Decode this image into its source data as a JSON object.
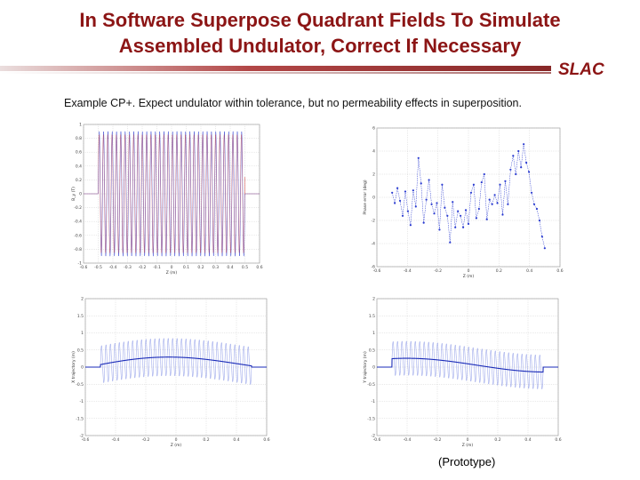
{
  "slide": {
    "title_line1": "In Software Superpose Quadrant Fields To Simulate",
    "title_line2": "Assembled Undulator, Correct If Necessary",
    "logo": "SLAC",
    "subtitle": "Example CP+.  Expect undulator within tolerance, but no permeability effects in superposition.",
    "caption": "(Prototype)"
  },
  "colors": {
    "title": "#8c1515",
    "trace_blue": "#2a3bd0",
    "trace_red": "#d04040",
    "grid": "#c8c8c8"
  },
  "chart_data": [
    {
      "type": "line",
      "title": "",
      "xlabel": "Z (m)",
      "ylabel": "B_y (T)",
      "ylim": [
        -1,
        1
      ],
      "xlim": [
        -0.6,
        0.6
      ],
      "x_ticks": [
        "-0.6",
        "-0.5",
        "-0.4",
        "-0.3",
        "-0.2",
        "-0.1",
        "0",
        "0.1",
        "0.2",
        "0.3",
        "0.4",
        "0.5",
        "0.6"
      ],
      "y_ticks": [
        "1",
        "0.8",
        "0.6",
        "0.4",
        "0.2",
        "0",
        "-0.2",
        "-0.4",
        "-0.6",
        "-0.8",
        "-1"
      ],
      "series": [
        {
          "color": "#2a3bd0",
          "periods": 34,
          "amplitude": 0.9,
          "x_start": -0.5,
          "x_end": 0.5
        },
        {
          "color": "#d04040",
          "periods": 34,
          "amplitude": 0.88,
          "x_start": -0.5,
          "x_end": 0.5
        }
      ]
    },
    {
      "type": "scatter",
      "title": "",
      "xlabel": "Z (m)",
      "ylabel": "Phase error (deg)",
      "ylim": [
        -6,
        6
      ],
      "xlim": [
        -0.6,
        0.6
      ],
      "x_ticks": [
        "-0.6",
        "-0.4",
        "-0.2",
        "0",
        "0.2",
        "0.4",
        "0.6"
      ],
      "y_ticks": [
        "6",
        "4",
        "2",
        "0",
        "-2",
        "-4",
        "-6"
      ],
      "values": [
        0.4,
        -0.5,
        0.8,
        -0.3,
        -1.6,
        0.5,
        -1.2,
        -2.4,
        0.6,
        -0.8,
        3.4,
        1.2,
        -2.2,
        -0.2,
        1.5,
        -0.6,
        -1.4,
        -0.5,
        -2.8,
        1.1,
        -0.9,
        -1.6,
        -3.9,
        -0.4,
        -2.6,
        -1.2,
        -1.6,
        -2.6,
        -1.1,
        -2.3,
        0.4,
        1.1,
        -1.8,
        -1.0,
        1.3,
        2.0,
        -1.9,
        -0.2,
        -0.6,
        0.2,
        -0.5,
        1.1,
        -1.5,
        1.4,
        -0.6,
        2.4,
        3.6,
        2.0,
        4.0,
        2.6,
        4.6,
        3.0,
        2.2,
        0.4,
        -0.6,
        -1.0,
        -2.0,
        -3.4,
        -4.4
      ]
    },
    {
      "type": "line",
      "title": "",
      "xlabel": "Z (m)",
      "ylabel": "X trajectory (m)",
      "ylim": [
        -2,
        2
      ],
      "xlim": [
        -0.6,
        0.6
      ],
      "x_ticks": [
        "-0.6",
        "-0.4",
        "-0.2",
        "0",
        "0.2",
        "0.4",
        "0.6"
      ],
      "y_ticks": [
        "2",
        "1.5",
        "1",
        "0.5",
        "0",
        "-0.5",
        "-1",
        "-1.5",
        "-2"
      ],
      "series": [
        {
          "color": "#6b7be0",
          "periods": 34,
          "amplitude": 0.55
        },
        {
          "color": "#1a2bb8",
          "periods": 0,
          "amplitude": 0
        }
      ]
    },
    {
      "type": "line",
      "title": "",
      "xlabel": "Z (m)",
      "ylabel": "Y trajectory (m)",
      "ylim": [
        -2,
        2
      ],
      "xlim": [
        -0.6,
        0.6
      ],
      "x_ticks": [
        "-0.6",
        "-0.4",
        "-0.2",
        "0",
        "0.2",
        "0.4",
        "0.6"
      ],
      "y_ticks": [
        "2",
        "1.5",
        "1",
        "0.5",
        "0",
        "-0.5",
        "-1",
        "-1.5",
        "-2"
      ],
      "series": [
        {
          "color": "#6b7be0",
          "periods": 34,
          "amplitude": 0.5
        },
        {
          "color": "#1a2bb8",
          "periods": 0,
          "amplitude": 0
        }
      ]
    }
  ]
}
